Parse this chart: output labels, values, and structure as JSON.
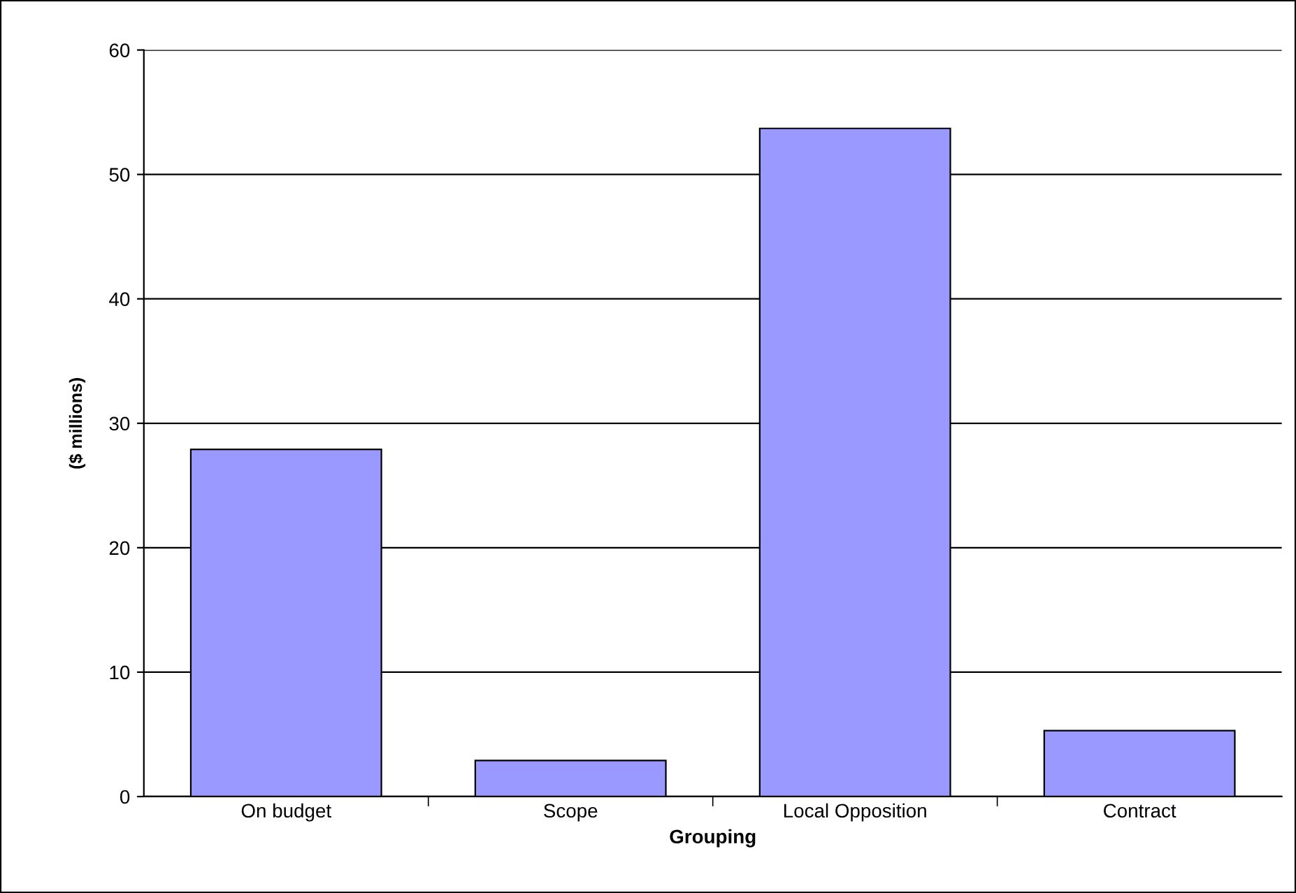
{
  "chart_data": {
    "type": "bar",
    "xlabel": "Grouping",
    "ylabel": "($ millions)",
    "categories": [
      "On budget",
      "Scope",
      "Local Opposition",
      "Contract"
    ],
    "values": [
      27.9,
      2.9,
      53.7,
      5.3
    ],
    "color": "#9999ff",
    "ylim": [
      0,
      60
    ],
    "yticks": [
      0,
      10,
      20,
      30,
      40,
      50,
      60
    ],
    "grid": "y",
    "legend": false
  }
}
